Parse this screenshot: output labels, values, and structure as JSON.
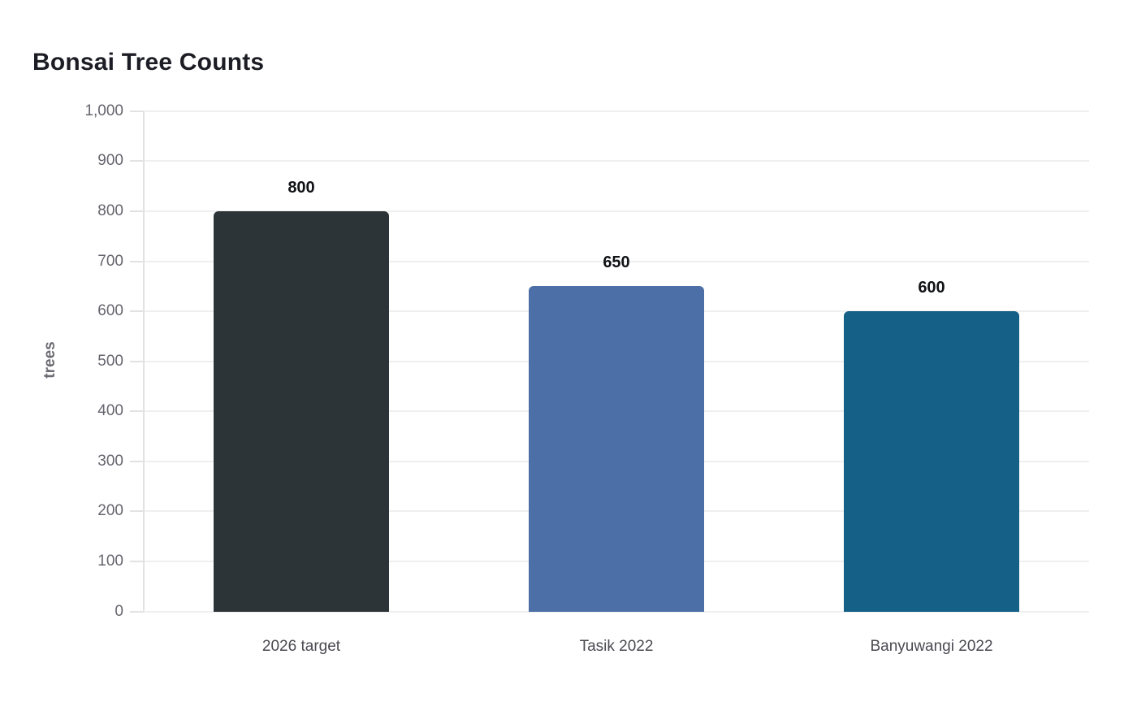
{
  "title": "Bonsai Tree Counts",
  "chart_data": {
    "type": "bar",
    "title": "Bonsai Tree Counts",
    "categories": [
      "2026 target",
      "Tasik 2022",
      "Banyuwangi 2022"
    ],
    "values": [
      800,
      650,
      600
    ],
    "value_labels": [
      "800",
      "650",
      "600"
    ],
    "bar_colors": [
      "#2d3437",
      "#4c6fa7",
      "#156086"
    ],
    "xlabel": "",
    "ylabel": "trees",
    "ylim": [
      0,
      1000
    ],
    "ytick_step": 100,
    "ytick_labels": [
      "0",
      "100",
      "200",
      "300",
      "400",
      "500",
      "600",
      "700",
      "800",
      "900",
      "1,000"
    ],
    "grid": true,
    "legend": false
  },
  "colors": {
    "background": "#ffffff",
    "title_text": "#1c1c24",
    "tick_label": "#65656e",
    "category_label": "#4a4a52",
    "value_label": "#111216",
    "axis_title": "#6a6a72",
    "gridline": "#efefef",
    "axis_line": "#e2e2e2"
  }
}
